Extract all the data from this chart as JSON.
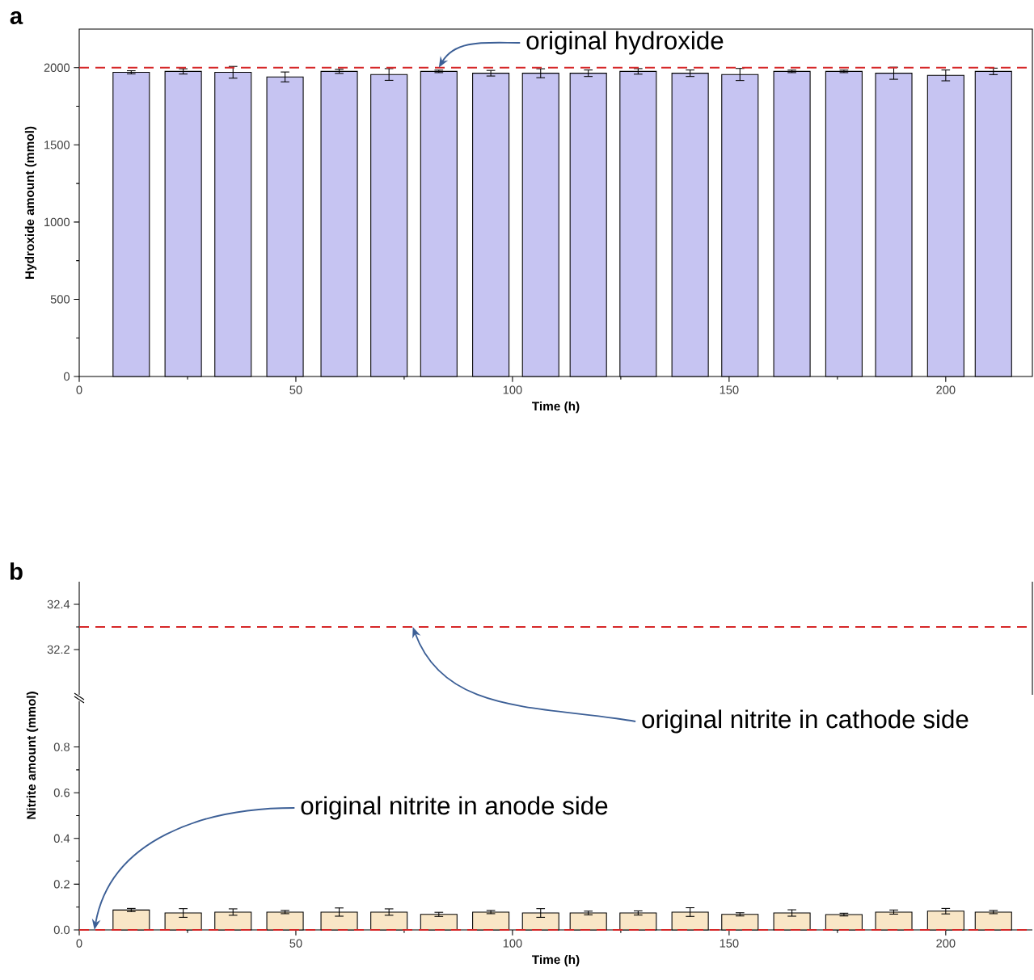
{
  "chart_data": [
    {
      "type": "bar",
      "title": "a",
      "xlabel": "Time (h)",
      "ylabel": "Hydroxide amount (mmol)",
      "x": [
        12,
        24,
        35.5,
        47.5,
        60,
        71.5,
        83,
        95,
        106.5,
        117.5,
        129,
        141,
        152.5,
        164.5,
        176.5,
        188,
        200,
        211
      ],
      "values": [
        1970,
        1976,
        1970,
        1940,
        1976,
        1956,
        1976,
        1964,
        1964,
        1964,
        1976,
        1964,
        1956,
        1976,
        1976,
        1964,
        1950,
        1976
      ],
      "errors": [
        10,
        17,
        38,
        32,
        13,
        38,
        8,
        18,
        29,
        21,
        18,
        21,
        39,
        8,
        8,
        39,
        35,
        21
      ],
      "color": "#c6c4f2",
      "xlim": [
        0,
        220
      ],
      "xticks": [
        0,
        50,
        100,
        150,
        200
      ],
      "ylim": [
        0,
        2250
      ],
      "yticks": [
        0,
        500,
        1000,
        1500,
        2000
      ],
      "ref_lines": [
        {
          "axis": "y",
          "value": 2000,
          "color": "#d62728",
          "line_style": "dashed"
        }
      ],
      "annotations": [
        {
          "text": "original hydroxide",
          "x": 83,
          "y": 2000
        }
      ]
    },
    {
      "type": "line",
      "title": "b",
      "xlim": [
        0,
        220
      ],
      "ylim": [
        32.0,
        32.5
      ],
      "yticks": [
        32.2,
        32.4
      ],
      "tick_labels": "y",
      "ref_lines": [
        {
          "axis": "y",
          "value": 32.3,
          "color": "#d62728",
          "line_style": "dashed"
        }
      ],
      "annotations": [
        {
          "text": "original nitrite in cathode side",
          "x": 77,
          "y": 32.3
        }
      ]
    },
    {
      "type": "bar",
      "xlabel": "Time (h)",
      "ylabel": "Nitrite amount (mmol)",
      "x": [
        12,
        24,
        35.5,
        47.5,
        60,
        71.5,
        83,
        95,
        106.5,
        117.5,
        129,
        141,
        152.5,
        164.5,
        176.5,
        188,
        200,
        211
      ],
      "values": [
        0.087,
        0.074,
        0.078,
        0.078,
        0.078,
        0.078,
        0.068,
        0.078,
        0.074,
        0.074,
        0.074,
        0.078,
        0.068,
        0.074,
        0.067,
        0.078,
        0.082,
        0.078
      ],
      "errors": [
        0.007,
        0.019,
        0.014,
        0.007,
        0.018,
        0.014,
        0.009,
        0.007,
        0.019,
        0.008,
        0.009,
        0.019,
        0.007,
        0.014,
        0.006,
        0.009,
        0.012,
        0.007
      ],
      "color": "#f9e6c6",
      "xlim": [
        0,
        220
      ],
      "xticks": [
        0,
        50,
        100,
        150,
        200
      ],
      "ylim": [
        0,
        1.0
      ],
      "yticks": [
        {
          "value": 0,
          "label": "0.0"
        },
        {
          "value": 0.2,
          "label": "0.2"
        },
        {
          "value": 0.4,
          "label": "0.4"
        },
        {
          "value": 0.6,
          "label": "0.6"
        },
        {
          "value": 0.8,
          "label": "0.8"
        }
      ],
      "ref_lines": [
        {
          "axis": "y",
          "value": 0,
          "color": "#d62728",
          "line_style": "dashed"
        }
      ],
      "annotations": [
        {
          "text": "original nitrite in anode side",
          "x": 3.5,
          "y": 0
        }
      ]
    }
  ]
}
